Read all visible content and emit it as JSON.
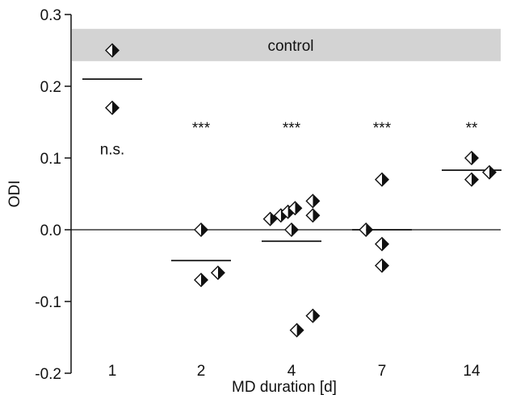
{
  "chart_data": {
    "type": "scatter",
    "xlabel": "MD duration [d]",
    "ylabel": "ODI",
    "ylim": [
      -0.2,
      0.3
    ],
    "yticks": [
      "0.3",
      "0.2",
      "0.1",
      "0.0",
      "-0.1",
      "-0.2"
    ],
    "ytick_values": [
      0.3,
      0.2,
      0.1,
      0.0,
      -0.1,
      -0.2
    ],
    "categories": [
      "1",
      "2",
      "4",
      "7",
      "14"
    ],
    "control_band": {
      "label": "control",
      "y_min": 0.235,
      "y_max": 0.28,
      "color": "#d3d3d3"
    },
    "groups": [
      {
        "category": "1",
        "annotation": "n.s.",
        "mean": 0.21,
        "points": [
          {
            "x": 0.0,
            "y": 0.25
          },
          {
            "x": 0.0,
            "y": 0.17
          }
        ]
      },
      {
        "category": "2",
        "annotation": "***",
        "mean": -0.043,
        "points": [
          {
            "x": 0.0,
            "y": 0.0
          },
          {
            "x": 0.0,
            "y": -0.07
          },
          {
            "x": 0.19,
            "y": -0.06
          }
        ]
      },
      {
        "category": "4",
        "annotation": "***",
        "mean": -0.016,
        "points": [
          {
            "x": -0.24,
            "y": 0.015
          },
          {
            "x": -0.12,
            "y": 0.02
          },
          {
            "x": -0.04,
            "y": 0.025
          },
          {
            "x": 0.04,
            "y": 0.03
          },
          {
            "x": 0.24,
            "y": 0.04
          },
          {
            "x": 0.24,
            "y": 0.02
          },
          {
            "x": 0.0,
            "y": 0.0
          },
          {
            "x": 0.24,
            "y": -0.12
          },
          {
            "x": 0.06,
            "y": -0.14
          }
        ]
      },
      {
        "category": "7",
        "annotation": "***",
        "mean": 0.0,
        "points": [
          {
            "x": -0.18,
            "y": 0.0
          },
          {
            "x": 0.0,
            "y": 0.07
          },
          {
            "x": 0.0,
            "y": -0.02
          },
          {
            "x": 0.0,
            "y": -0.05
          }
        ]
      },
      {
        "category": "14",
        "annotation": "**",
        "mean": 0.083,
        "points": [
          {
            "x": 0.0,
            "y": 0.1
          },
          {
            "x": 0.0,
            "y": 0.07
          },
          {
            "x": 0.2,
            "y": 0.08
          }
        ]
      }
    ],
    "grid": false,
    "zero_line": true
  }
}
